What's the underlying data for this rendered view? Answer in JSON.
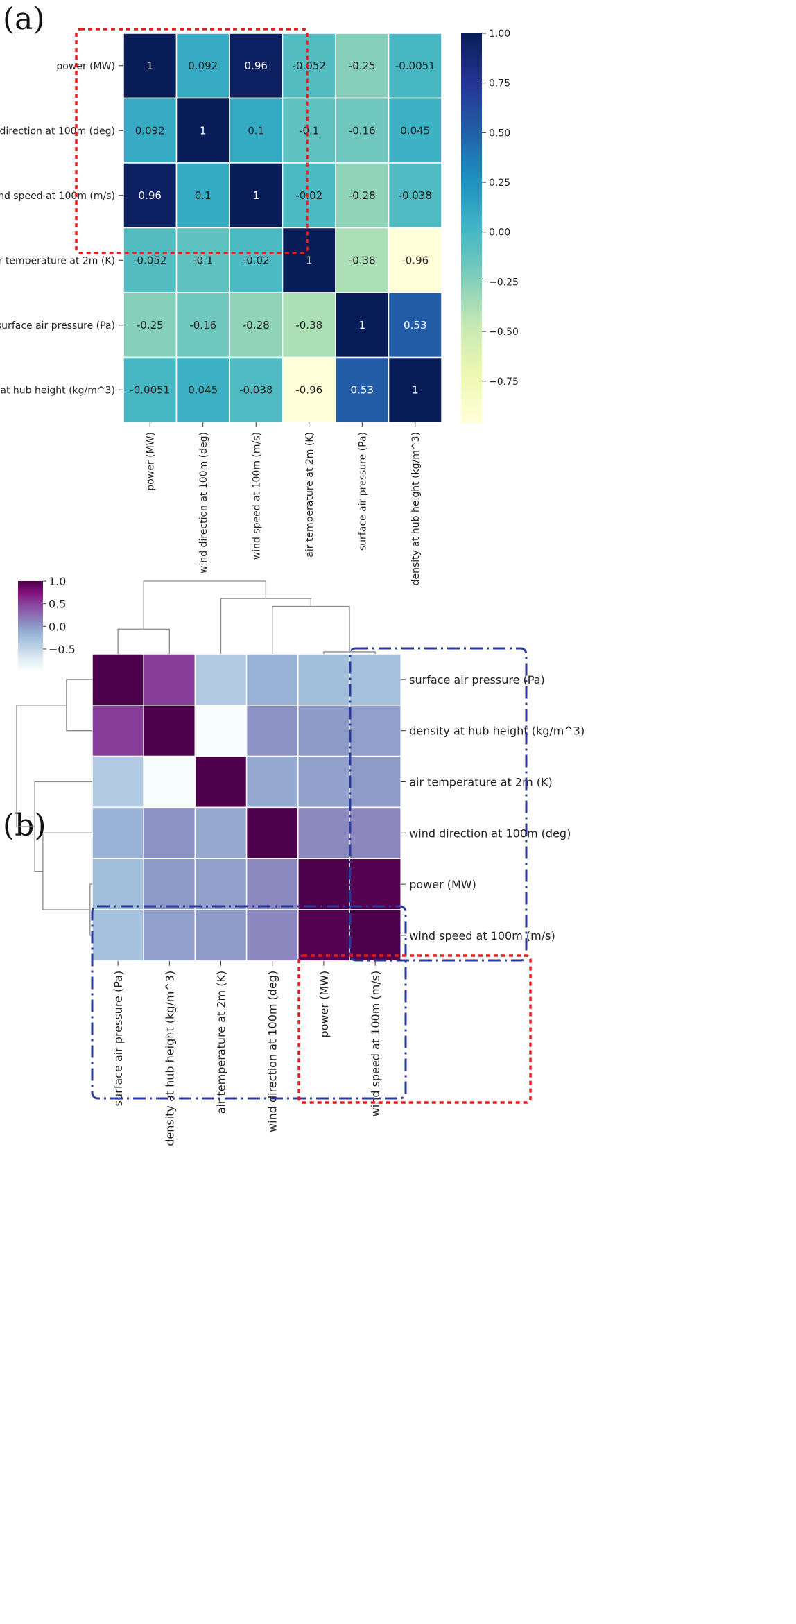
{
  "chart_data": [
    {
      "panel": "(a)",
      "type": "heatmap",
      "title": "",
      "labels": [
        "power (MW)",
        "wind direction at 100m (deg)",
        "wind speed at 100m (m/s)",
        "air temperature at 2m (K)",
        "surface air pressure (Pa)",
        "density at hub height (kg/m^3)"
      ],
      "values": [
        [
          1,
          0.092,
          0.96,
          -0.052,
          -0.25,
          -0.0051
        ],
        [
          0.092,
          1,
          0.1,
          -0.1,
          -0.16,
          0.045
        ],
        [
          0.96,
          0.1,
          1,
          -0.02,
          -0.28,
          -0.038
        ],
        [
          -0.052,
          -0.1,
          -0.02,
          1,
          -0.38,
          -0.96
        ],
        [
          -0.25,
          -0.16,
          -0.28,
          -0.38,
          1,
          0.53
        ],
        [
          -0.0051,
          0.045,
          -0.038,
          -0.96,
          0.53,
          1
        ]
      ],
      "value_labels": [
        [
          "1",
          "0.092",
          "0.96",
          "-0.052",
          "-0.25",
          "-0.0051"
        ],
        [
          "0.092",
          "1",
          "0.1",
          "-0.1",
          "-0.16",
          "0.045"
        ],
        [
          "0.96",
          "0.1",
          "1",
          "-0.02",
          "-0.28",
          "-0.038"
        ],
        [
          "-0.052",
          "-0.1",
          "-0.02",
          "1",
          "-0.38",
          "-0.96"
        ],
        [
          "-0.25",
          "-0.16",
          "-0.28",
          "-0.38",
          "1",
          "0.53"
        ],
        [
          "-0.0051",
          "0.045",
          "-0.038",
          "-0.96",
          "0.53",
          "1"
        ]
      ],
      "colormap": "YlGnBu",
      "colorbar": {
        "range": [
          -0.96,
          1.0
        ],
        "ticks": [
          1.0,
          0.75,
          0.5,
          0.25,
          0.0,
          -0.25,
          -0.5,
          -0.75
        ],
        "tick_labels": [
          "1.00",
          "0.75",
          "0.50",
          "0.25",
          "0.00",
          "−0.25",
          "−0.50",
          "−0.75"
        ]
      },
      "highlight": {
        "rows": [
          0,
          2
        ],
        "cols": [
          0,
          3
        ],
        "style": "red-dotted"
      }
    },
    {
      "panel": "(b)",
      "type": "heatmap",
      "subtype": "clustermap",
      "row_labels": [
        "surface air pressure (Pa)",
        "density at hub height (kg/m^3)",
        "air temperature at 2m (K)",
        "wind direction at 100m (deg)",
        "power (MW)",
        "wind speed at 100m (m/s)"
      ],
      "col_labels": [
        "surface air pressure (Pa)",
        "density at hub height (kg/m^3)",
        "air temperature at 2m (K)",
        "wind direction at 100m (deg)",
        "power (MW)",
        "wind speed at 100m (m/s)"
      ],
      "values": [
        [
          1,
          0.53,
          -0.38,
          -0.16,
          -0.25,
          -0.28
        ],
        [
          0.53,
          1,
          -0.96,
          0.045,
          -0.0051,
          -0.038
        ],
        [
          -0.38,
          -0.96,
          1,
          -0.1,
          -0.052,
          -0.02
        ],
        [
          -0.16,
          0.045,
          -0.1,
          1,
          0.092,
          0.1
        ],
        [
          -0.25,
          -0.0051,
          -0.052,
          0.092,
          1,
          0.96
        ],
        [
          -0.28,
          -0.038,
          -0.02,
          0.1,
          0.96,
          1
        ]
      ],
      "colormap": "BuPu",
      "colorbar": {
        "range": [
          -0.96,
          1.0
        ],
        "ticks": [
          1.0,
          0.5,
          0.0,
          -0.5
        ],
        "tick_labels": [
          "1.0",
          "0.5",
          "0.0",
          "−0.5"
        ]
      },
      "dendrogram": {
        "leaf_order": [
          "surface air pressure (Pa)",
          "density at hub height (kg/m^3)",
          "air temperature at 2m (K)",
          "wind direction at 100m (deg)",
          "power (MW)",
          "wind speed at 100m (m/s)"
        ],
        "merges": [
          {
            "left": 4,
            "right": 5,
            "height": 0.04
          },
          {
            "left": 3,
            "right": 6,
            "height": 0.9
          },
          {
            "left": 0,
            "right": 1,
            "height": 0.47
          },
          {
            "left": 2,
            "right": 7,
            "height": 1.05
          },
          {
            "left": 8,
            "right": 9,
            "height": 1.38
          }
        ]
      },
      "highlights": [
        {
          "rows": [
            0,
            5
          ],
          "cols": [
            5,
            5
          ],
          "style": "blue-dashdot"
        },
        {
          "rows": [
            5,
            5
          ],
          "cols": [
            0,
            5
          ],
          "style": "blue-dashdot"
        },
        {
          "rows": [
            4,
            5
          ],
          "cols": [
            4,
            5
          ],
          "style": "red-dotted"
        }
      ]
    }
  ]
}
